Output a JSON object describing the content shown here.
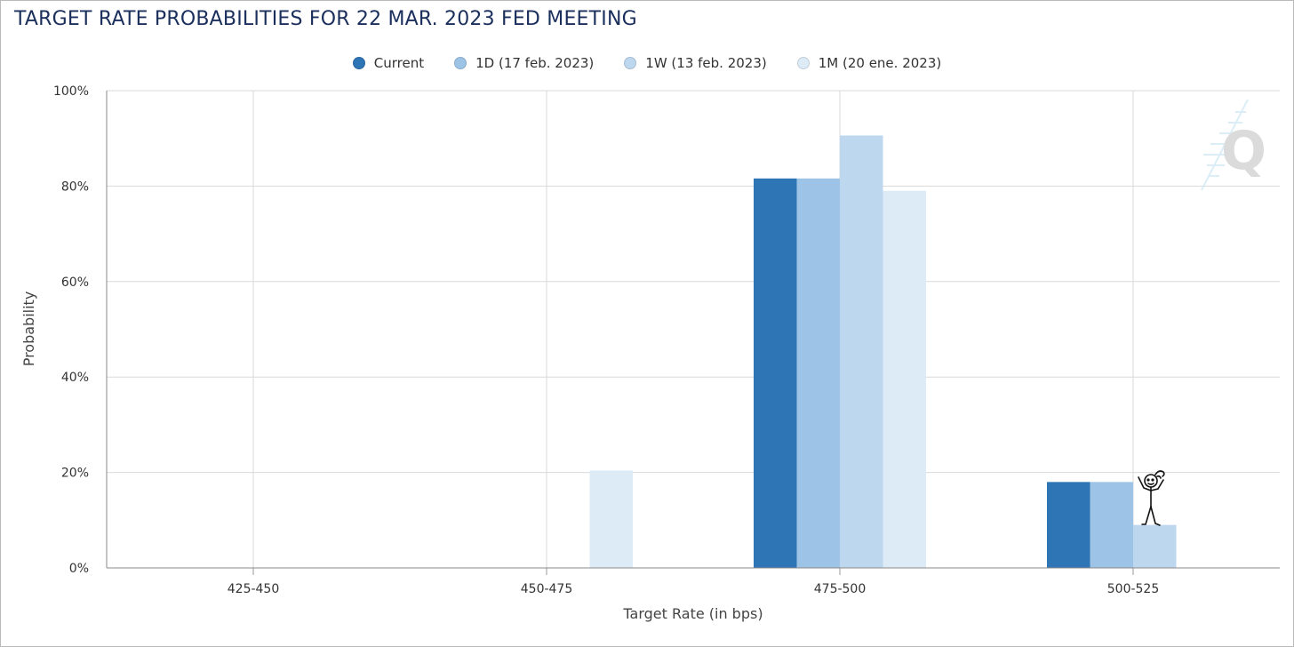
{
  "title": "TARGET RATE PROBABILITIES FOR 22 MAR. 2023 FED MEETING",
  "chart_data": {
    "type": "bar",
    "title": "TARGET RATE PROBABILITIES FOR 22 MAR. 2023 FED MEETING",
    "xlabel": "Target Rate (in bps)",
    "ylabel": "Probability",
    "categories": [
      "425-450",
      "450-475",
      "475-500",
      "500-525"
    ],
    "ylim": [
      0,
      100
    ],
    "yticks": [
      "0%",
      "20%",
      "40%",
      "60%",
      "80%",
      "100%"
    ],
    "grid": true,
    "legend_position": "top-center",
    "series": [
      {
        "name": "Current",
        "color": "#2e75b6",
        "values": [
          0,
          0,
          81.6,
          18.0
        ]
      },
      {
        "name": "1D (17 feb. 2023)",
        "color": "#9dc3e6",
        "values": [
          0,
          0,
          81.6,
          18.0
        ]
      },
      {
        "name": "1W (13 feb. 2023)",
        "color": "#bdd7ee",
        "values": [
          0,
          0,
          90.6,
          9.0
        ]
      },
      {
        "name": "1M (20 ene. 2023)",
        "color": "#ddebf7",
        "values": [
          0,
          20.4,
          79.0,
          0
        ]
      }
    ]
  },
  "watermark": {
    "text": "Q",
    "icon": "quikstrike-logo-icon"
  },
  "annotation": {
    "icon": "stick-figure-doodle-icon"
  }
}
